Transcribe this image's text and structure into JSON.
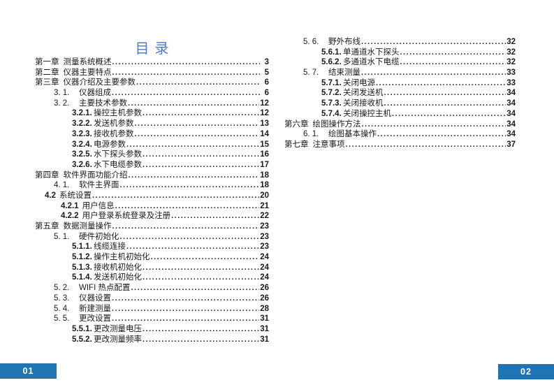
{
  "title": "目录",
  "colors": {
    "accent_blue": "#1f74b4",
    "title_blue": "#4e79c7",
    "text": "#1a1a1a"
  },
  "page1": {
    "badge": "01",
    "entries": [
      {
        "level": "1",
        "num": "第一章",
        "label": "测量系统概述",
        "page": "3"
      },
      {
        "level": "1",
        "num": "第二章",
        "label": "仪器主要特点",
        "page": "5"
      },
      {
        "level": "1",
        "num": "第三章",
        "label": "仪器介绍及主要参数",
        "page": "6"
      },
      {
        "level": "2",
        "num": "3. 1.",
        "label": "仪器组成",
        "page": "6"
      },
      {
        "level": "2",
        "num": "3. 2.",
        "label": "主要技术参数",
        "page": "12"
      },
      {
        "level": "3",
        "num": "3.2.1.",
        "label": "操控主机参数",
        "page": "12"
      },
      {
        "level": "3",
        "num": "3.2.2.",
        "label": "发送机参数",
        "page": "13"
      },
      {
        "level": "3",
        "num": "3.2.3.",
        "label": "接收机参数",
        "page": "14"
      },
      {
        "level": "3",
        "num": "3.2.4.",
        "label": "电源参数",
        "page": "15"
      },
      {
        "level": "3",
        "num": "3.2.5.",
        "label": "水下探头参数",
        "page": "16"
      },
      {
        "level": "3",
        "num": "3.2.6.",
        "label": "水下电缆参数",
        "page": "17"
      },
      {
        "level": "1",
        "num": "第四章",
        "label": "软件界面功能介绍",
        "page": "18"
      },
      {
        "level": "2",
        "num": "4. 1.",
        "label": "软件主界面",
        "page": "18"
      },
      {
        "level": "2b",
        "num": "4.2",
        "label": "系统设置",
        "page": "20"
      },
      {
        "level": "3b",
        "num": "4.2.1",
        "label": "用户信息",
        "page": "21"
      },
      {
        "level": "3b",
        "num": "4.2.2",
        "label": "用户登录系统登录及注册",
        "page": "22"
      },
      {
        "level": "1",
        "num": "第五章",
        "label": "数据测量操作",
        "page": "23"
      },
      {
        "level": "2",
        "num": "5. 1.",
        "label": "硬件初始化",
        "page": "23"
      },
      {
        "level": "3",
        "num": "5.1.1.",
        "label": "线缆连接",
        "page": "23"
      },
      {
        "level": "3",
        "num": "5.1.2.",
        "label": "操作主机初始化",
        "page": "24"
      },
      {
        "level": "3",
        "num": "5.1.3.",
        "label": "接收机初始化",
        "page": "24"
      },
      {
        "level": "3",
        "num": "5.1.4.",
        "label": "发送机初始化",
        "page": "24"
      },
      {
        "level": "2",
        "num": "5. 2.",
        "label": "WIFI 热点配置",
        "page": "26"
      },
      {
        "level": "2",
        "num": "5. 3.",
        "label": "仪器设置",
        "page": "26"
      },
      {
        "level": "2",
        "num": "5. 4.",
        "label": "新建测量",
        "page": "28"
      },
      {
        "level": "2",
        "num": "5. 5.",
        "label": "更改设置",
        "page": "31"
      },
      {
        "level": "3",
        "num": "5.5.1.",
        "label": "更改测量电压",
        "page": "31"
      },
      {
        "level": "3",
        "num": "5.5.2.",
        "label": "更改测量频率",
        "page": "31"
      }
    ]
  },
  "page2": {
    "badge": "02",
    "entries": [
      {
        "level": "2",
        "num": "5. 6.",
        "label": "野外布线",
        "page": "32"
      },
      {
        "level": "3",
        "num": "5.6.1.",
        "label": "单通道水下探头",
        "page": "32"
      },
      {
        "level": "3",
        "num": "5.6.2.",
        "label": "多通道水下电缆",
        "page": "32"
      },
      {
        "level": "2",
        "num": "5. 7.",
        "label": "结束测量",
        "page": "33"
      },
      {
        "level": "3",
        "num": "5.7.1.",
        "label": "关闭电源",
        "page": "33"
      },
      {
        "level": "3",
        "num": "5.7.2.",
        "label": "关闭发送机",
        "page": "34"
      },
      {
        "level": "3",
        "num": "5.7.3.",
        "label": "关闭接收机",
        "page": "34"
      },
      {
        "level": "3",
        "num": "5.7.4.",
        "label": "关闭操控主机",
        "page": "34"
      },
      {
        "level": "1",
        "num": "第六章",
        "label": "绘图操作方法",
        "page": "34"
      },
      {
        "level": "2",
        "num": "6. 1.",
        "label": "绘图基本操作",
        "page": "34"
      },
      {
        "level": "1",
        "num": "第七章",
        "label": "注意事项",
        "page": "37"
      }
    ]
  }
}
